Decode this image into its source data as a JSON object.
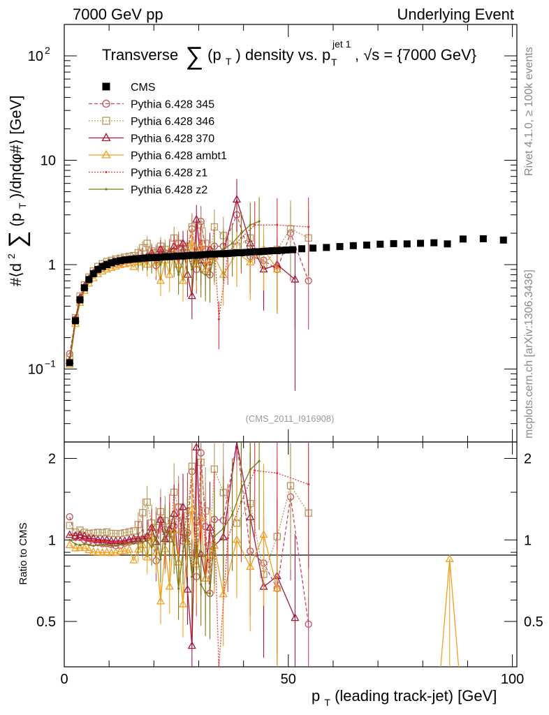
{
  "header": {
    "left": "7000 GeV pp",
    "right": "Underlying Event"
  },
  "side_labels": {
    "rivet": "Rivet 4.1.0, ≥ 100k events",
    "mcplots": "mcplots.cern.ch [arXiv:1306.3436]"
  },
  "watermark": "(CMS_2011_I916908)",
  "chart_data": {
    "type": "scatter",
    "title": "Transverse ∑(p_T) density vs. p_T^{jet 1}, √s = {7000 GeV}",
    "title_parts": {
      "a": "Transverse",
      "b": "(p",
      "c": "T",
      "d": ") density vs. p",
      "e": "jet 1",
      "f": "T",
      "g": ", √s = {7000 GeV}"
    },
    "xlabel": "p_T (leading track-jet) [GeV]",
    "xlabel_parts": {
      "a": "p",
      "b": "T",
      "c": " (leading track-jet) [GeV]"
    },
    "ylabel": "#⟨d²∑(p_T)/dηdφ#⟩ [GeV]",
    "ylabel_parts": {
      "a": "#⟨d",
      "b": "2",
      "c": "(p",
      "d": "T",
      "e": ")/dηdφ#⟩ [GeV]"
    },
    "ratio_ylabel": "Ratio to CMS",
    "xlim": [
      0,
      101
    ],
    "ylim": [
      0.02,
      200
    ],
    "yscale": "log",
    "ratio_ylim": [
      0.34,
      2.3
    ],
    "x_ticks": [
      0,
      50,
      100
    ],
    "x_tick_labels": [
      "0",
      "50",
      "100"
    ],
    "y_ticks": [
      0.1,
      1,
      10,
      100
    ],
    "y_tick_labels": [
      {
        "b": "10",
        "e": "−1"
      },
      {
        "b": "1",
        "e": ""
      },
      {
        "b": "10",
        "e": ""
      },
      {
        "b": "10",
        "e": "2"
      }
    ],
    "ratio_ticks": [
      0.5,
      1,
      2
    ],
    "ratio_tick_labels": [
      "0.5",
      "1",
      "2"
    ],
    "legend_position": "top-left",
    "series": [
      {
        "name": "CMS",
        "color": "#000000",
        "marker": "square",
        "line": "none",
        "x": [
          1.2,
          2.5,
          3.5,
          4.5,
          5.5,
          6.5,
          7.5,
          8.5,
          9.5,
          10.5,
          11.5,
          12.5,
          13.5,
          14.5,
          15.5,
          16.5,
          17.5,
          18.5,
          19.5,
          20.5,
          21.5,
          22.5,
          23.5,
          24.5,
          25.5,
          26.5,
          27.5,
          28.5,
          29.5,
          30.5,
          31.5,
          32.5,
          33.5,
          34.5,
          35.5,
          36.5,
          37.5,
          38.5,
          39.5,
          40.5,
          41.5,
          42.5,
          43.5,
          44.5,
          45.5,
          46.5,
          47.5,
          48.5,
          49.5,
          51,
          53,
          55.5,
          58.5,
          61.5,
          64.5,
          67.5,
          70.5,
          73.5,
          76.5,
          79.5,
          82.5,
          85.5,
          89,
          93.5,
          98
        ],
        "y": [
          0.115,
          0.29,
          0.46,
          0.6,
          0.72,
          0.82,
          0.9,
          0.96,
          1.0,
          1.04,
          1.07,
          1.09,
          1.11,
          1.12,
          1.13,
          1.14,
          1.15,
          1.16,
          1.17,
          1.17,
          1.18,
          1.19,
          1.19,
          1.2,
          1.21,
          1.21,
          1.22,
          1.23,
          1.23,
          1.24,
          1.25,
          1.26,
          1.26,
          1.27,
          1.27,
          1.28,
          1.29,
          1.3,
          1.3,
          1.31,
          1.32,
          1.33,
          1.33,
          1.34,
          1.35,
          1.36,
          1.36,
          1.37,
          1.38,
          1.39,
          1.42,
          1.44,
          1.46,
          1.49,
          1.52,
          1.54,
          1.57,
          1.59,
          1.58,
          1.6,
          1.62,
          1.58,
          1.76,
          1.77,
          1.72
        ]
      },
      {
        "name": "Pythia 6.428 345",
        "color": "#c6485f",
        "marker": "circle",
        "line": "dashed",
        "x": [
          1.2,
          2.5,
          3.5,
          4.5,
          5.5,
          6.5,
          7.5,
          8.5,
          9.5,
          10.5,
          11.5,
          12.5,
          13.5,
          14.5,
          15.5,
          16.5,
          17.5,
          18.5,
          19.5,
          20.5,
          21.5,
          22.5,
          23.5,
          24.5,
          25.5,
          26.5,
          27.5,
          28.5,
          29.5,
          30.5,
          31.5,
          32.5,
          33.5,
          35.5,
          38.5,
          41.5,
          44.5,
          47.5,
          50.5,
          54.5
        ],
        "y": [
          0.14,
          0.3,
          0.47,
          0.6,
          0.71,
          0.8,
          0.88,
          0.93,
          0.97,
          1.0,
          1.02,
          1.04,
          1.08,
          1.1,
          1.12,
          1.13,
          1.16,
          1.18,
          1.2,
          0.98,
          1.4,
          1.3,
          1.2,
          1.35,
          1.6,
          1.2,
          1.3,
          2.2,
          0.9,
          2.6,
          1.4,
          0.8,
          1.5,
          1.5,
          3.0,
          1.2,
          1.1,
          0.9,
          2.0,
          0.7
        ]
      },
      {
        "name": "Pythia 6.428 346",
        "color": "#b8965d",
        "marker": "square-open",
        "line": "dotted",
        "x": [
          1.2,
          2.5,
          3.5,
          4.5,
          5.5,
          6.5,
          7.5,
          8.5,
          9.5,
          10.5,
          11.5,
          12.5,
          13.5,
          14.5,
          15.5,
          16.5,
          17.5,
          18.5,
          19.5,
          20.5,
          21.5,
          22.5,
          23.5,
          24.5,
          25.5,
          26.5,
          27.5,
          28.5,
          29.5,
          30.5,
          31.5,
          32.5,
          33.5,
          35.5,
          38.5,
          41.5,
          44.5,
          47.5,
          50.5,
          54.5
        ],
        "y": [
          0.13,
          0.31,
          0.5,
          0.64,
          0.76,
          0.87,
          0.96,
          1.02,
          1.07,
          1.1,
          1.13,
          1.15,
          1.18,
          1.2,
          1.22,
          1.3,
          1.45,
          1.6,
          1.35,
          1.3,
          1.5,
          1.4,
          1.2,
          1.8,
          1.6,
          1.3,
          1.5,
          2.3,
          1.1,
          2.4,
          1.6,
          1.2,
          2.3,
          1.9,
          1.5,
          1.8,
          1.0,
          1.4,
          2.2,
          1.8
        ]
      },
      {
        "name": "Pythia 6.428 370",
        "color": "#a3163b",
        "marker": "triangle-open",
        "line": "solid",
        "x": [
          1.2,
          2.5,
          3.5,
          4.5,
          5.5,
          6.5,
          7.5,
          8.5,
          9.5,
          10.5,
          11.5,
          12.5,
          13.5,
          14.5,
          15.5,
          16.5,
          17.5,
          18.5,
          19.5,
          20.5,
          21.5,
          22.5,
          23.5,
          24.5,
          25.5,
          26.5,
          27.5,
          28.5,
          29.5,
          30.5,
          31.5,
          32.5,
          33.5,
          35.5,
          38.5,
          41.5,
          44.5,
          47.5,
          51.5
        ],
        "y": [
          0.12,
          0.3,
          0.48,
          0.62,
          0.73,
          0.83,
          0.9,
          0.96,
          1.0,
          1.03,
          1.06,
          1.08,
          1.1,
          1.12,
          1.14,
          1.15,
          1.16,
          1.2,
          1.3,
          1.15,
          1.4,
          1.2,
          1.3,
          1.5,
          1.0,
          1.6,
          0.8,
          0.5,
          2.7,
          1.1,
          0.9,
          1.4,
          1.2,
          1.3,
          4.2,
          1.6,
          0.9,
          1.0,
          0.72
        ]
      },
      {
        "name": "Pythia 6.428 ambt1",
        "color": "#f0a020",
        "marker": "triangle-open",
        "line": "solid",
        "x": [
          1.2,
          2.5,
          3.5,
          4.5,
          5.5,
          6.5,
          7.5,
          8.5,
          9.5,
          10.5,
          11.5,
          12.5,
          13.5,
          14.5,
          15.5,
          16.5,
          17.5,
          18.5,
          19.5,
          20.5,
          21.5,
          22.5,
          23.5,
          24.5,
          25.5,
          26.5,
          27.5,
          28.5,
          29.5,
          30.5,
          31.5,
          32.5,
          33.5,
          35.5,
          38.5,
          41.5,
          44.5,
          47.5
        ],
        "y": [
          0.11,
          0.27,
          0.43,
          0.56,
          0.66,
          0.74,
          0.81,
          0.86,
          0.9,
          0.93,
          0.96,
          0.99,
          1.01,
          1.03,
          0.95,
          1.05,
          1.1,
          1.0,
          1.2,
          1.05,
          0.7,
          1.1,
          0.8,
          1.3,
          1.0,
          0.7,
          1.2,
          1.6,
          1.0,
          1.5,
          0.9,
          1.1,
          1.2,
          0.8,
          1.3,
          1.05,
          1.4,
          0.9
        ]
      },
      {
        "name": "Pythia 6.428 z1",
        "color": "#e03a3a",
        "marker": "dot",
        "line": "dotted",
        "x": [
          1.2,
          2.5,
          3.5,
          4.5,
          5.5,
          6.5,
          7.5,
          8.5,
          9.5,
          10.5,
          11.5,
          12.5,
          13.5,
          14.5,
          15.5,
          16.5,
          17.5,
          18.5,
          19.5,
          20.5,
          21.5,
          22.5,
          23.5,
          24.5,
          25.5,
          26.5,
          27.5,
          28.5,
          29.5,
          30.5,
          31.5,
          32.5,
          33.5,
          34.5,
          36.5,
          39.5,
          42.5,
          47.5,
          54.5
        ],
        "y": [
          0.12,
          0.29,
          0.46,
          0.6,
          0.72,
          0.81,
          0.89,
          0.95,
          0.99,
          1.02,
          1.05,
          1.07,
          1.09,
          1.1,
          1.14,
          1.2,
          1.25,
          1.15,
          1.3,
          1.25,
          1.35,
          1.15,
          1.4,
          1.3,
          1.5,
          1.2,
          1.6,
          0.9,
          1.4,
          1.7,
          1.2,
          1.0,
          1.5,
          0.3,
          1.3,
          1.8,
          2.4,
          2.4,
          2.3
        ]
      },
      {
        "name": "Pythia 6.428 z2",
        "color": "#7a7a12",
        "marker": "dot",
        "line": "solid",
        "x": [
          1.2,
          2.5,
          3.5,
          4.5,
          5.5,
          6.5,
          7.5,
          8.5,
          9.5,
          10.5,
          11.5,
          12.5,
          13.5,
          14.5,
          15.5,
          16.5,
          17.5,
          18.5,
          19.5,
          20.5,
          21.5,
          22.5,
          23.5,
          24.5,
          25.5,
          26.5,
          27.5,
          28.5,
          29.5,
          30.5,
          31.5,
          32.5,
          33.5,
          35.5,
          37.5,
          39.5,
          41.5,
          43.5
        ],
        "y": [
          0.115,
          0.28,
          0.44,
          0.58,
          0.69,
          0.78,
          0.86,
          0.92,
          0.96,
          0.99,
          1.02,
          1.05,
          1.07,
          1.09,
          1.1,
          1.12,
          1.13,
          1.15,
          1.1,
          1.2,
          1.0,
          1.3,
          1.25,
          1.15,
          0.8,
          1.1,
          1.3,
          0.9,
          1.2,
          0.85,
          0.8,
          0.8,
          1.3,
          1.4,
          1.6,
          2.0,
          2.4,
          2.6
        ]
      }
    ]
  }
}
